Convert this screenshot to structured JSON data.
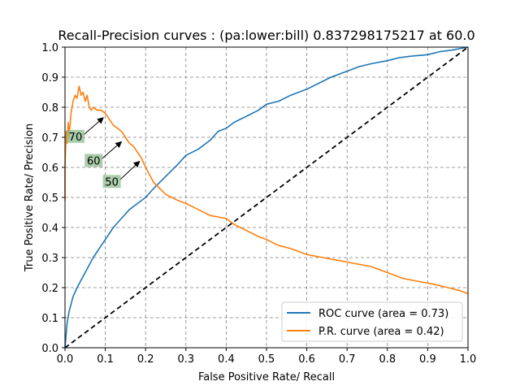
{
  "chart_data": {
    "type": "line",
    "title": "Recall-Precision curves : (pa:lower:bill) 0.837298175217 at 60.0",
    "xlabel": "False Positive Rate/ Recall",
    "ylabel": "True Positive Rate/ Precision",
    "xlim": [
      0.0,
      1.0
    ],
    "ylim": [
      0.0,
      1.0
    ],
    "xticks": [
      "0.0",
      "0.1",
      "0.2",
      "0.3",
      "0.4",
      "0.5",
      "0.6",
      "0.7",
      "0.8",
      "0.9",
      "1.0"
    ],
    "yticks": [
      "0.0",
      "0.1",
      "0.2",
      "0.3",
      "0.4",
      "0.5",
      "0.6",
      "0.7",
      "0.8",
      "0.9",
      "1.0"
    ],
    "grid": true,
    "legend_position": "lower-right",
    "series": [
      {
        "name": "ROC curve (area = 0.73)",
        "color": "#1f77b4",
        "style": "solid",
        "x": [
          0.0,
          0.005,
          0.01,
          0.02,
          0.03,
          0.05,
          0.07,
          0.09,
          0.1,
          0.12,
          0.14,
          0.16,
          0.18,
          0.2,
          0.22,
          0.25,
          0.28,
          0.3,
          0.33,
          0.36,
          0.38,
          0.4,
          0.42,
          0.45,
          0.48,
          0.5,
          0.53,
          0.56,
          0.58,
          0.6,
          0.63,
          0.66,
          0.7,
          0.73,
          0.76,
          0.8,
          0.83,
          0.86,
          0.9,
          0.93,
          0.96,
          1.0
        ],
        "y": [
          0.0,
          0.08,
          0.12,
          0.17,
          0.2,
          0.25,
          0.3,
          0.34,
          0.36,
          0.4,
          0.43,
          0.46,
          0.48,
          0.5,
          0.53,
          0.57,
          0.61,
          0.64,
          0.66,
          0.69,
          0.72,
          0.73,
          0.75,
          0.77,
          0.79,
          0.81,
          0.82,
          0.84,
          0.85,
          0.86,
          0.88,
          0.9,
          0.92,
          0.935,
          0.945,
          0.955,
          0.965,
          0.97,
          0.975,
          0.985,
          0.99,
          1.0
        ]
      },
      {
        "name": "P.R. curve (area = 0.42)",
        "color": "#ff7f0e",
        "style": "solid",
        "x": [
          0.0,
          0.0,
          0.003,
          0.005,
          0.008,
          0.01,
          0.015,
          0.02,
          0.025,
          0.03,
          0.035,
          0.04,
          0.045,
          0.05,
          0.055,
          0.06,
          0.065,
          0.07,
          0.08,
          0.09,
          0.1,
          0.11,
          0.12,
          0.13,
          0.14,
          0.15,
          0.16,
          0.17,
          0.18,
          0.19,
          0.2,
          0.22,
          0.25,
          0.28,
          0.3,
          0.33,
          0.36,
          0.4,
          0.42,
          0.45,
          0.48,
          0.5,
          0.53,
          0.56,
          0.6,
          0.64,
          0.68,
          0.72,
          0.76,
          0.8,
          0.84,
          0.88,
          0.92,
          0.95,
          0.98,
          1.0
        ],
        "y": [
          0.49,
          0.6,
          0.72,
          0.68,
          0.75,
          0.7,
          0.78,
          0.82,
          0.84,
          0.83,
          0.87,
          0.84,
          0.85,
          0.82,
          0.84,
          0.8,
          0.79,
          0.8,
          0.79,
          0.79,
          0.78,
          0.76,
          0.74,
          0.73,
          0.72,
          0.7,
          0.68,
          0.67,
          0.65,
          0.63,
          0.6,
          0.55,
          0.51,
          0.49,
          0.48,
          0.46,
          0.44,
          0.43,
          0.41,
          0.39,
          0.37,
          0.36,
          0.34,
          0.33,
          0.31,
          0.3,
          0.29,
          0.28,
          0.27,
          0.25,
          0.23,
          0.22,
          0.21,
          0.2,
          0.19,
          0.18
        ]
      },
      {
        "name": "diagonal",
        "color": "#000000",
        "style": "dashed",
        "x": [
          0.0,
          1.0
        ],
        "y": [
          0.0,
          1.0
        ]
      }
    ],
    "annotations": [
      {
        "text": "70",
        "label_x": 0.01,
        "label_y": 0.695,
        "arrow_x": 0.095,
        "arrow_y": 0.765
      },
      {
        "text": "60",
        "label_x": 0.055,
        "label_y": 0.615,
        "arrow_x": 0.14,
        "arrow_y": 0.685
      },
      {
        "text": "50",
        "label_x": 0.1,
        "label_y": 0.545,
        "arrow_x": 0.185,
        "arrow_y": 0.62
      }
    ]
  }
}
